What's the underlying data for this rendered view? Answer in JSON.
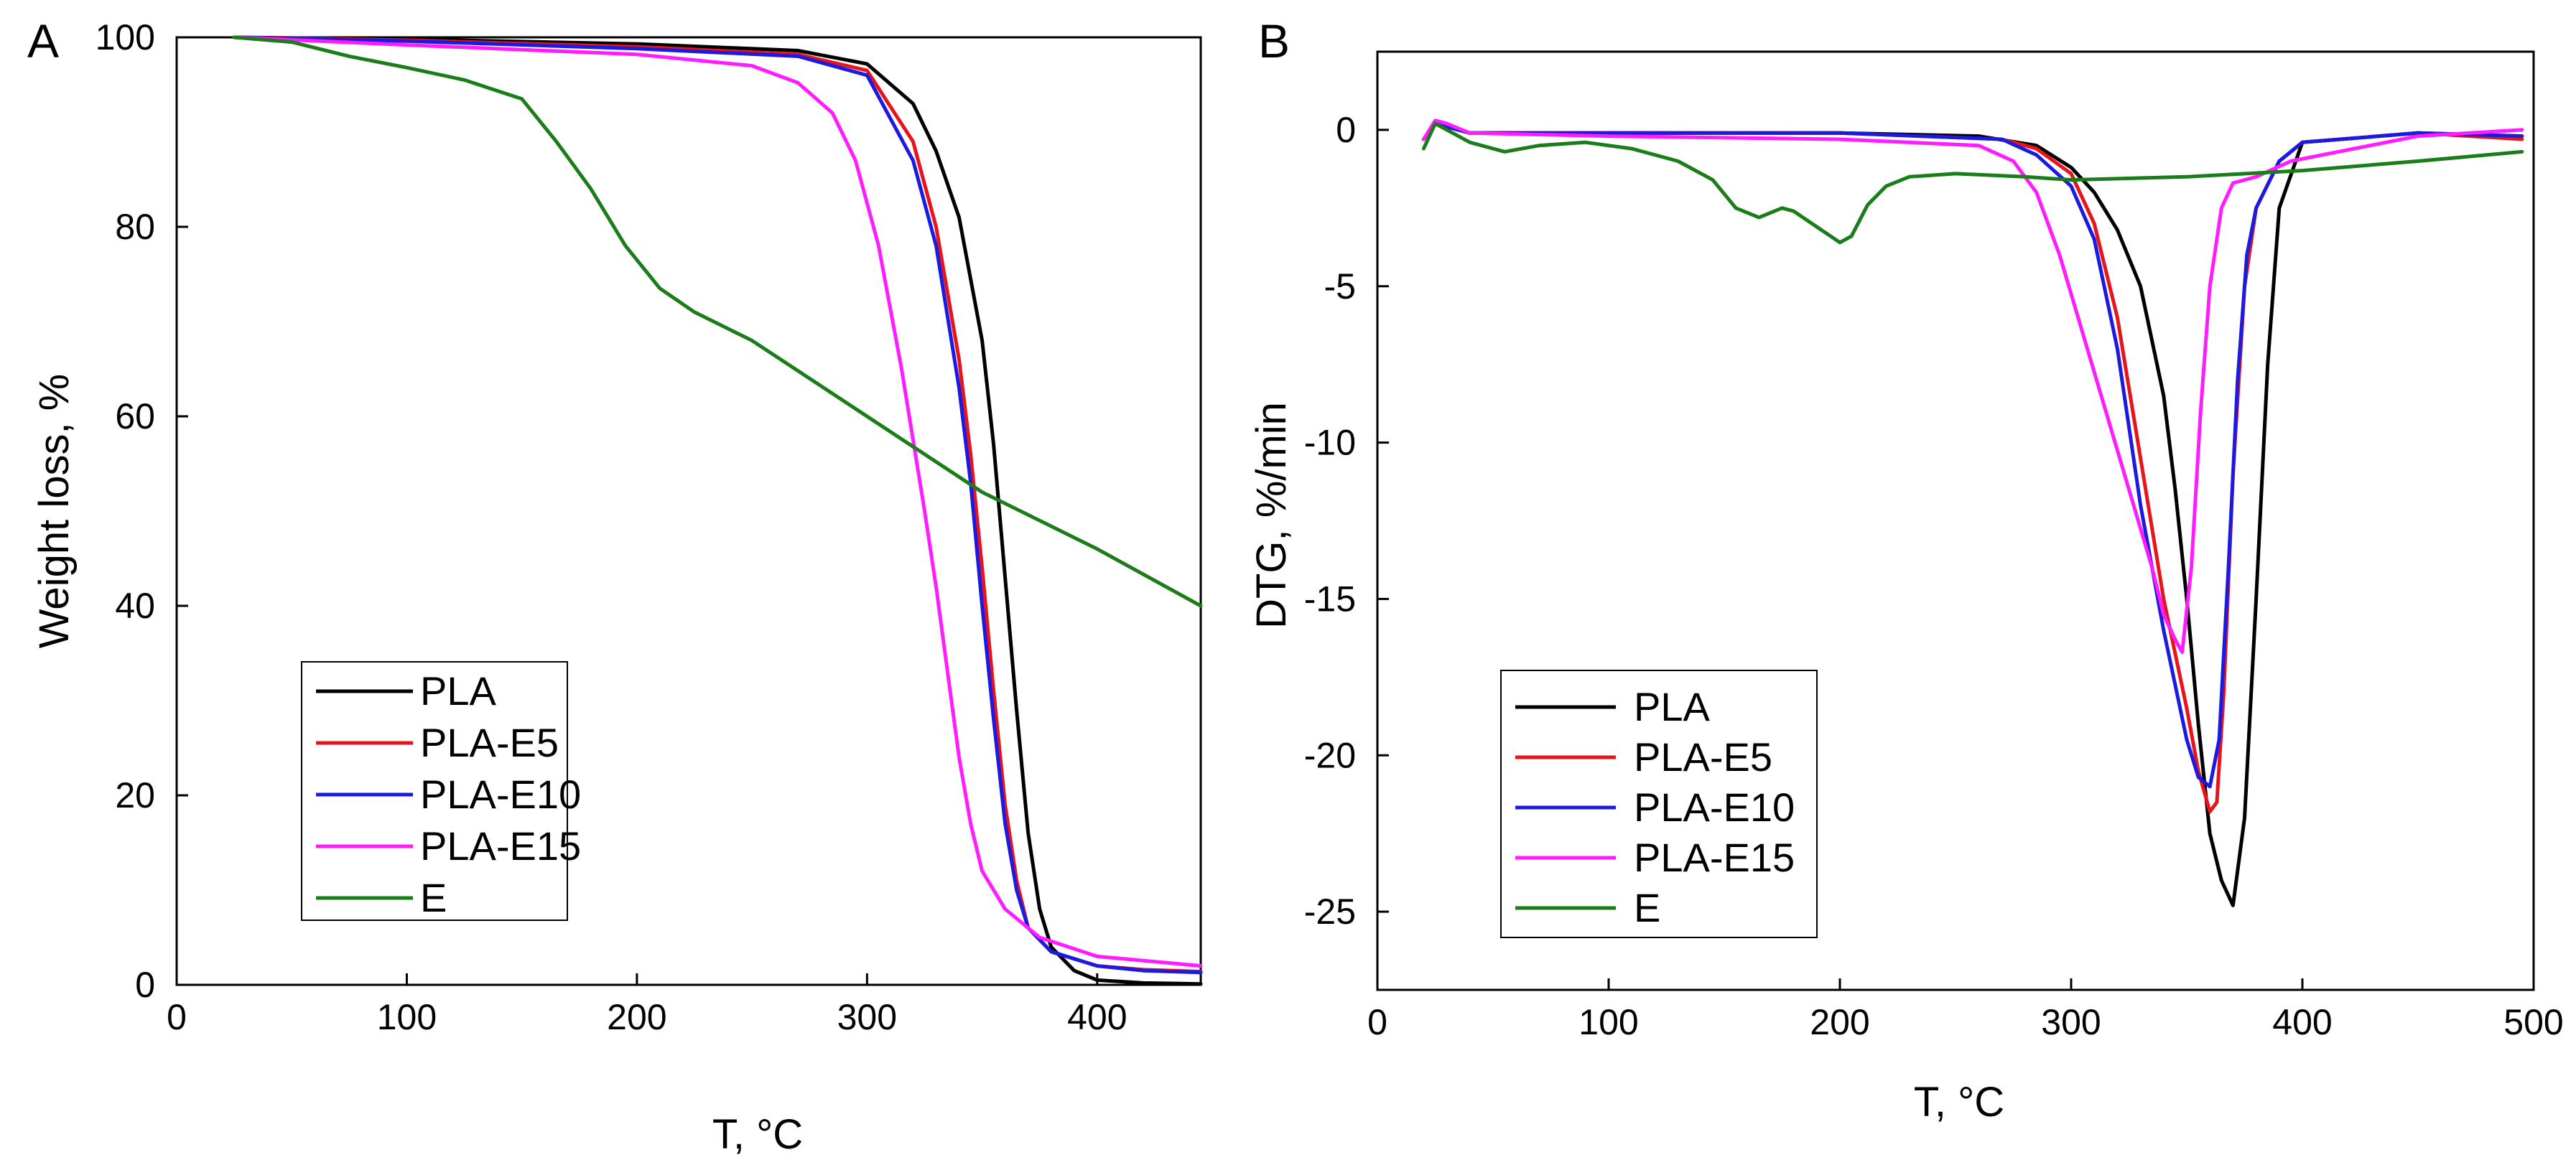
{
  "chart_data": [
    {
      "panel": "A",
      "type": "line",
      "xlabel": "T, °C",
      "ylabel": "Weight loss, %",
      "xlim": [
        0,
        445
      ],
      "ylim": [
        0,
        100
      ],
      "xticks": [
        0,
        100,
        200,
        300,
        400
      ],
      "yticks": [
        0,
        20,
        40,
        60,
        80,
        100
      ],
      "legend_position": "bottom-left",
      "series": [
        {
          "name": "PLA",
          "color": "#000000",
          "x": [
            25,
            100,
            200,
            270,
            300,
            320,
            330,
            340,
            350,
            355,
            360,
            365,
            370,
            375,
            380,
            390,
            400,
            420,
            445
          ],
          "y": [
            100,
            99.8,
            99.3,
            98.6,
            97.2,
            93,
            88,
            81,
            68,
            57,
            43,
            29,
            16,
            8,
            4,
            1.5,
            0.5,
            0.2,
            0.1
          ]
        },
        {
          "name": "PLA-E5",
          "color": "#e8141b",
          "x": [
            25,
            100,
            200,
            270,
            300,
            320,
            330,
            340,
            345,
            350,
            355,
            360,
            365,
            370,
            380,
            400,
            420,
            445
          ],
          "y": [
            100,
            99.7,
            99,
            98.2,
            96.5,
            89,
            80,
            66,
            56,
            44,
            31,
            19,
            11,
            6,
            3.5,
            2,
            1.6,
            1.4
          ]
        },
        {
          "name": "PLA-E10",
          "color": "#1a1ae0",
          "x": [
            25,
            100,
            200,
            270,
            300,
            320,
            330,
            340,
            345,
            350,
            355,
            360,
            365,
            370,
            380,
            400,
            420,
            445
          ],
          "y": [
            100,
            99.6,
            98.8,
            98,
            96,
            87,
            78,
            63,
            53,
            40,
            28,
            17,
            10,
            6,
            3.5,
            2,
            1.5,
            1.3
          ]
        },
        {
          "name": "PLA-E15",
          "color": "#ff1cff",
          "x": [
            25,
            100,
            200,
            250,
            270,
            285,
            295,
            305,
            315,
            325,
            330,
            335,
            340,
            345,
            350,
            360,
            375,
            400,
            445
          ],
          "y": [
            100,
            99.2,
            98.2,
            97,
            95.2,
            92,
            87,
            78,
            65,
            50,
            42,
            33,
            24,
            17,
            12,
            8,
            5,
            3,
            2
          ]
        },
        {
          "name": "E",
          "color": "#1a7d1a",
          "x": [
            25,
            50,
            75,
            100,
            125,
            150,
            165,
            180,
            195,
            210,
            225,
            250,
            300,
            350,
            400,
            445
          ],
          "y": [
            100,
            99.5,
            98,
            96.8,
            95.5,
            93.5,
            89,
            84,
            78,
            73.5,
            71,
            68,
            60,
            52,
            46,
            40
          ]
        }
      ]
    },
    {
      "panel": "B",
      "type": "line",
      "xlabel": "T, °C",
      "ylabel": "DTG, %/min",
      "xlim": [
        0,
        500
      ],
      "ylim": [
        -27.5,
        2.5
      ],
      "xticks": [
        0,
        100,
        200,
        300,
        400,
        500
      ],
      "yticks": [
        0,
        -5,
        -10,
        -15,
        -20,
        -25
      ],
      "legend_position": "bottom-left",
      "series": [
        {
          "name": "PLA",
          "color": "#000000",
          "x": [
            20,
            25,
            30,
            40,
            100,
            200,
            260,
            285,
            300,
            310,
            320,
            330,
            340,
            345,
            350,
            355,
            360,
            365,
            370,
            375,
            380,
            385,
            390,
            400,
            450,
            495
          ],
          "y": [
            -0.3,
            0.2,
            0.1,
            -0.1,
            -0.1,
            -0.1,
            -0.2,
            -0.5,
            -1.2,
            -2,
            -3.2,
            -5,
            -8.5,
            -11.5,
            -15,
            -19,
            -22.5,
            -24,
            -24.8,
            -22,
            -15,
            -7.5,
            -2.5,
            -0.4,
            -0.1,
            -0.2
          ]
        },
        {
          "name": "PLA-E5",
          "color": "#e8141b",
          "x": [
            20,
            25,
            30,
            40,
            100,
            200,
            270,
            285,
            300,
            310,
            320,
            330,
            340,
            350,
            355,
            360,
            363,
            366,
            370,
            375,
            380,
            390,
            400,
            450,
            495
          ],
          "y": [
            -0.3,
            0.2,
            0.1,
            -0.1,
            -0.1,
            -0.1,
            -0.3,
            -0.6,
            -1.4,
            -3,
            -6,
            -10.5,
            -15,
            -18.5,
            -20.5,
            -21.8,
            -21.5,
            -18,
            -11,
            -5,
            -2.5,
            -1,
            -0.4,
            -0.1,
            -0.3
          ]
        },
        {
          "name": "PLA-E10",
          "color": "#1a1ae0",
          "x": [
            20,
            25,
            30,
            40,
            100,
            200,
            270,
            285,
            300,
            310,
            320,
            330,
            340,
            350,
            355,
            360,
            364,
            368,
            372,
            376,
            380,
            390,
            400,
            450,
            495
          ],
          "y": [
            -0.3,
            0.2,
            0.1,
            -0.1,
            -0.1,
            -0.1,
            -0.3,
            -0.8,
            -1.8,
            -3.5,
            -7,
            -12,
            -16,
            -19.5,
            -20.7,
            -21,
            -19.5,
            -14,
            -8,
            -4,
            -2.5,
            -1,
            -0.4,
            -0.1,
            -0.2
          ]
        },
        {
          "name": "PLA-E15",
          "color": "#ff1cff",
          "x": [
            20,
            25,
            30,
            40,
            100,
            200,
            260,
            275,
            285,
            295,
            305,
            315,
            325,
            335,
            340,
            345,
            348,
            352,
            356,
            360,
            365,
            370,
            380,
            395,
            450,
            495
          ],
          "y": [
            -0.3,
            0.3,
            0.2,
            -0.1,
            -0.2,
            -0.3,
            -0.5,
            -1,
            -2,
            -4,
            -6.5,
            -9,
            -11.5,
            -14,
            -15.5,
            -16.3,
            -16.7,
            -14,
            -9,
            -5,
            -2.5,
            -1.7,
            -1.5,
            -1,
            -0.2,
            0
          ]
        },
        {
          "name": "E",
          "color": "#1a7d1a",
          "x": [
            20,
            25,
            40,
            55,
            70,
            90,
            110,
            130,
            145,
            155,
            165,
            175,
            180,
            190,
            200,
            205,
            212,
            220,
            230,
            250,
            280,
            300,
            350,
            400,
            450,
            495
          ],
          "y": [
            -0.6,
            0.2,
            -0.4,
            -0.7,
            -0.5,
            -0.4,
            -0.6,
            -1,
            -1.6,
            -2.5,
            -2.8,
            -2.5,
            -2.6,
            -3.1,
            -3.6,
            -3.4,
            -2.4,
            -1.8,
            -1.5,
            -1.4,
            -1.5,
            -1.6,
            -1.5,
            -1.3,
            -1.0,
            -0.7
          ]
        }
      ]
    }
  ]
}
